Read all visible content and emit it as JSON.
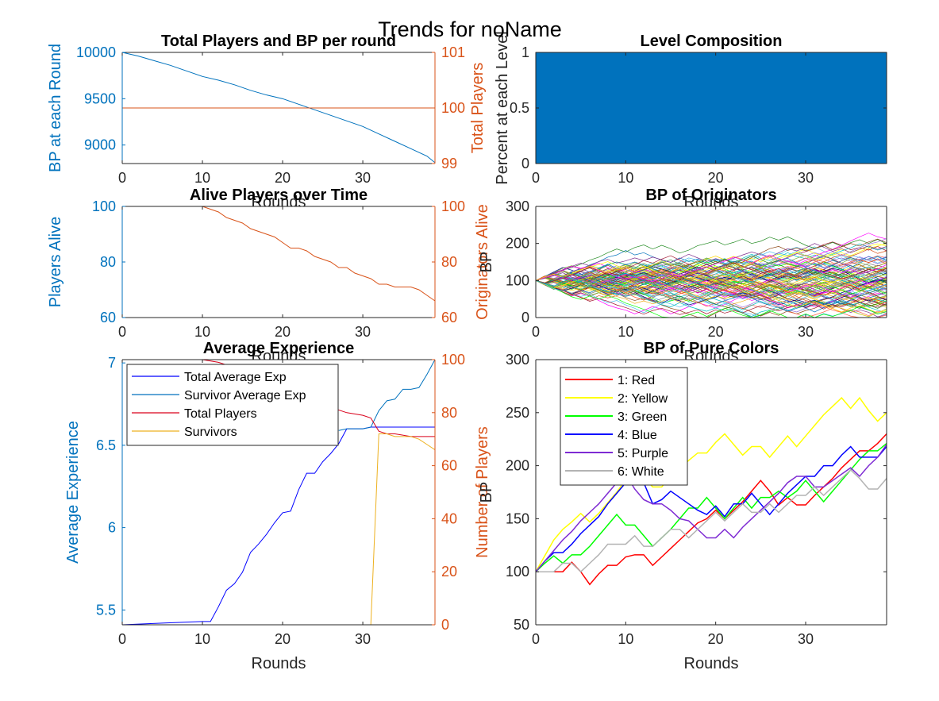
{
  "figure": {
    "title": "Trends for noName"
  },
  "colors": {
    "left_axis": "#0072BD",
    "right_axis": "#D95319",
    "axis": "#262626",
    "fill": "#0072BD"
  },
  "chart_data": [
    {
      "id": "p1",
      "type": "line",
      "title": "Total Players and BP per round",
      "xlabel": "Rounds",
      "xlim": [
        0,
        39
      ],
      "xticks": [
        0,
        10,
        20,
        30
      ],
      "ylabel": "BP at each Round",
      "ylim": [
        8800,
        10000
      ],
      "yticks": [
        9000,
        9500,
        10000
      ],
      "ylabel_right": "Total Players",
      "ylim_right": [
        99,
        101
      ],
      "yticks_right": [
        99,
        100,
        101
      ],
      "series": [
        {
          "axis": "left",
          "color": "#0072BD",
          "x": [
            0,
            2,
            4,
            6,
            8,
            10,
            12,
            14,
            16,
            18,
            20,
            22,
            24,
            26,
            28,
            30,
            32,
            34,
            36,
            38,
            39
          ],
          "y": [
            10000,
            9960,
            9910,
            9860,
            9800,
            9740,
            9700,
            9650,
            9590,
            9540,
            9500,
            9440,
            9380,
            9320,
            9260,
            9200,
            9120,
            9040,
            8960,
            8880,
            8810
          ]
        },
        {
          "axis": "right",
          "color": "#D95319",
          "x": [
            0,
            39
          ],
          "y": [
            100,
            100
          ]
        }
      ]
    },
    {
      "id": "p2",
      "type": "area",
      "title": "Level Composition",
      "xlabel": "Rounds",
      "xlim": [
        0,
        39
      ],
      "xticks": [
        0,
        10,
        20,
        30
      ],
      "ylabel": "Percent at each Level",
      "ylim": [
        0,
        1
      ],
      "yticks": [
        0,
        0.5,
        1
      ],
      "series": [
        {
          "color": "#0072BD",
          "x": [
            0,
            39
          ],
          "y": [
            1,
            1
          ]
        }
      ]
    },
    {
      "id": "p3",
      "type": "line",
      "title": "Alive Players over Time",
      "xlabel": "Rounds",
      "xlim": [
        0,
        39
      ],
      "xticks": [
        0,
        10,
        20,
        30
      ],
      "ylabel": "Players Alive",
      "ylim": [
        60,
        100
      ],
      "yticks": [
        60,
        80,
        100
      ],
      "ylabel_right": "Originators Alive",
      "ylim_right": [
        60,
        100
      ],
      "yticks_right": [
        60,
        80,
        100
      ],
      "series": [
        {
          "axis": "left",
          "color": "#0072BD",
          "x": [
            0,
            39
          ],
          "y": [
            100,
            100
          ]
        },
        {
          "axis": "right",
          "color": "#D95319",
          "x": [
            0,
            10,
            11,
            12,
            13,
            14,
            15,
            16,
            17,
            18,
            19,
            20,
            21,
            22,
            23,
            24,
            25,
            26,
            27,
            28,
            29,
            30,
            31,
            32,
            33,
            34,
            35,
            36,
            37,
            38,
            39
          ],
          "y": [
            100,
            100,
            99,
            98,
            96,
            95,
            94,
            92,
            91,
            90,
            89,
            87,
            85,
            85,
            84,
            82,
            81,
            80,
            78,
            78,
            76,
            75,
            74,
            72,
            72,
            71,
            71,
            71,
            70,
            68,
            66
          ]
        }
      ]
    },
    {
      "id": "p4",
      "type": "line",
      "title": "BP of Originators",
      "xlabel": "Rounds",
      "xlim": [
        0,
        39
      ],
      "xticks": [
        0,
        10,
        20,
        30
      ],
      "ylabel": "BP",
      "ylim": [
        0,
        300
      ],
      "yticks": [
        0,
        100,
        200,
        300
      ],
      "series_note_count": 100,
      "start_value": 100
    },
    {
      "id": "p5",
      "type": "line",
      "title": "Average Experience",
      "xlabel": "Rounds",
      "xlim": [
        0,
        39
      ],
      "xticks": [
        0,
        10,
        20,
        30
      ],
      "ylabel": "Average Experience",
      "ylim": [
        5.41,
        7.02
      ],
      "yticks": [
        5.5,
        6,
        6.5,
        7
      ],
      "ylabel_right": "Number of Players",
      "ylim_right": [
        0,
        100
      ],
      "yticks_right": [
        0,
        20,
        40,
        60,
        80,
        100
      ],
      "legend": {
        "location": "top-left"
      },
      "series": [
        {
          "name": "Total Average Exp",
          "axis": "left",
          "color": "#0000FF",
          "x": [
            0,
            5,
            10,
            11,
            12,
            13,
            14,
            15,
            16,
            17,
            18,
            19,
            20,
            21,
            22,
            23,
            24,
            25,
            26,
            27,
            28,
            29,
            30,
            31,
            32,
            33,
            34,
            35,
            36,
            37,
            38,
            39
          ],
          "y": [
            5.41,
            5.42,
            5.43,
            5.43,
            5.52,
            5.62,
            5.66,
            5.73,
            5.85,
            5.9,
            5.96,
            6.03,
            6.09,
            6.1,
            6.23,
            6.33,
            6.33,
            6.4,
            6.45,
            6.51,
            6.6,
            6.6,
            6.6,
            6.61,
            6.61,
            6.61,
            6.61,
            6.61,
            6.61,
            6.61,
            6.61,
            6.61
          ]
        },
        {
          "name": "Survivor Average Exp",
          "axis": "left",
          "color": "#0072BD",
          "x": [
            27,
            28,
            29,
            30,
            31,
            32,
            33,
            34,
            35,
            36,
            37,
            38,
            39
          ],
          "y": [
            6.59,
            6.6,
            6.6,
            6.6,
            6.61,
            6.71,
            6.77,
            6.78,
            6.84,
            6.84,
            6.85,
            6.93,
            7.02
          ]
        },
        {
          "name": "Total Players",
          "axis": "right",
          "color": "#D9001B",
          "x": [
            0,
            10,
            12,
            14,
            16,
            18,
            20,
            22,
            24,
            26,
            28,
            30,
            31,
            32,
            33,
            34,
            36,
            38,
            39
          ],
          "y": [
            100,
            100,
            99,
            97,
            95,
            92,
            89,
            86,
            84,
            82,
            80,
            79,
            78,
            73,
            72,
            72,
            71,
            71,
            71
          ]
        },
        {
          "name": "Survivors",
          "axis": "right",
          "color": "#EDB120",
          "x": [
            0,
            31,
            32,
            33,
            34,
            35,
            36,
            37,
            38,
            39
          ],
          "y": [
            0,
            0,
            72,
            72,
            71,
            71,
            71,
            70,
            68,
            66
          ]
        }
      ]
    },
    {
      "id": "p6",
      "type": "line",
      "title": "BP of Pure Colors",
      "xlabel": "Rounds",
      "xlim": [
        0,
        39
      ],
      "xticks": [
        0,
        10,
        20,
        30
      ],
      "ylabel": "BP",
      "ylim": [
        50,
        300
      ],
      "yticks": [
        50,
        100,
        150,
        200,
        250,
        300
      ],
      "legend": {
        "location": "top-left"
      },
      "series": [
        {
          "name": "1: Red",
          "color": "#FF0000",
          "y": [
            100,
            100,
            100,
            100,
            109,
            100,
            88,
            98,
            106,
            106,
            114,
            116,
            116,
            106,
            114,
            122,
            130,
            138,
            146,
            150,
            158,
            150,
            158,
            166,
            176,
            186,
            176,
            163,
            170,
            163,
            163,
            172,
            180,
            188,
            198,
            206,
            214,
            214,
            221,
            230
          ]
        },
        {
          "name": "2: Yellow",
          "color": "#FFFF00",
          "y": [
            100,
            115,
            130,
            140,
            147,
            155,
            147,
            155,
            165,
            175,
            187,
            197,
            189,
            180,
            180,
            190,
            197,
            205,
            212,
            212,
            222,
            230,
            220,
            210,
            218,
            218,
            208,
            218,
            228,
            218,
            228,
            238,
            248,
            256,
            264,
            254,
            264,
            252,
            242,
            250
          ]
        },
        {
          "name": "3: Green",
          "color": "#00FF00",
          "y": [
            100,
            108,
            115,
            108,
            116,
            116,
            124,
            134,
            144,
            154,
            144,
            144,
            134,
            124,
            132,
            140,
            150,
            160,
            160,
            170,
            160,
            150,
            160,
            170,
            160,
            170,
            170,
            176,
            170,
            176,
            186,
            176,
            166,
            176,
            186,
            196,
            206,
            214,
            214,
            221
          ]
        },
        {
          "name": "4: Blue",
          "color": "#0000FF",
          "y": [
            100,
            110,
            118,
            118,
            126,
            136,
            144,
            152,
            164,
            174,
            184,
            194,
            184,
            164,
            168,
            176,
            170,
            164,
            158,
            154,
            162,
            152,
            164,
            164,
            174,
            164,
            154,
            164,
            174,
            182,
            190,
            190,
            200,
            200,
            210,
            218,
            208,
            208,
            208,
            218
          ]
        },
        {
          "name": "5: Purple",
          "color": "#7E2BD3",
          "y": [
            100,
            110,
            120,
            130,
            138,
            148,
            156,
            164,
            174,
            184,
            192,
            178,
            168,
            164,
            164,
            158,
            150,
            148,
            140,
            132,
            132,
            140,
            132,
            142,
            150,
            158,
            166,
            174,
            184,
            190,
            190,
            180,
            180,
            186,
            192,
            198,
            190,
            200,
            208,
            220
          ]
        },
        {
          "name": "6: White",
          "color": "#B3B3B3",
          "y": [
            100,
            100,
            100,
            108,
            108,
            100,
            108,
            116,
            126,
            126,
            126,
            134,
            124,
            124,
            132,
            140,
            140,
            132,
            140,
            148,
            156,
            148,
            156,
            164,
            156,
            156,
            164,
            156,
            164,
            172,
            172,
            180,
            172,
            180,
            188,
            196,
            188,
            178,
            178,
            188
          ]
        }
      ]
    }
  ]
}
